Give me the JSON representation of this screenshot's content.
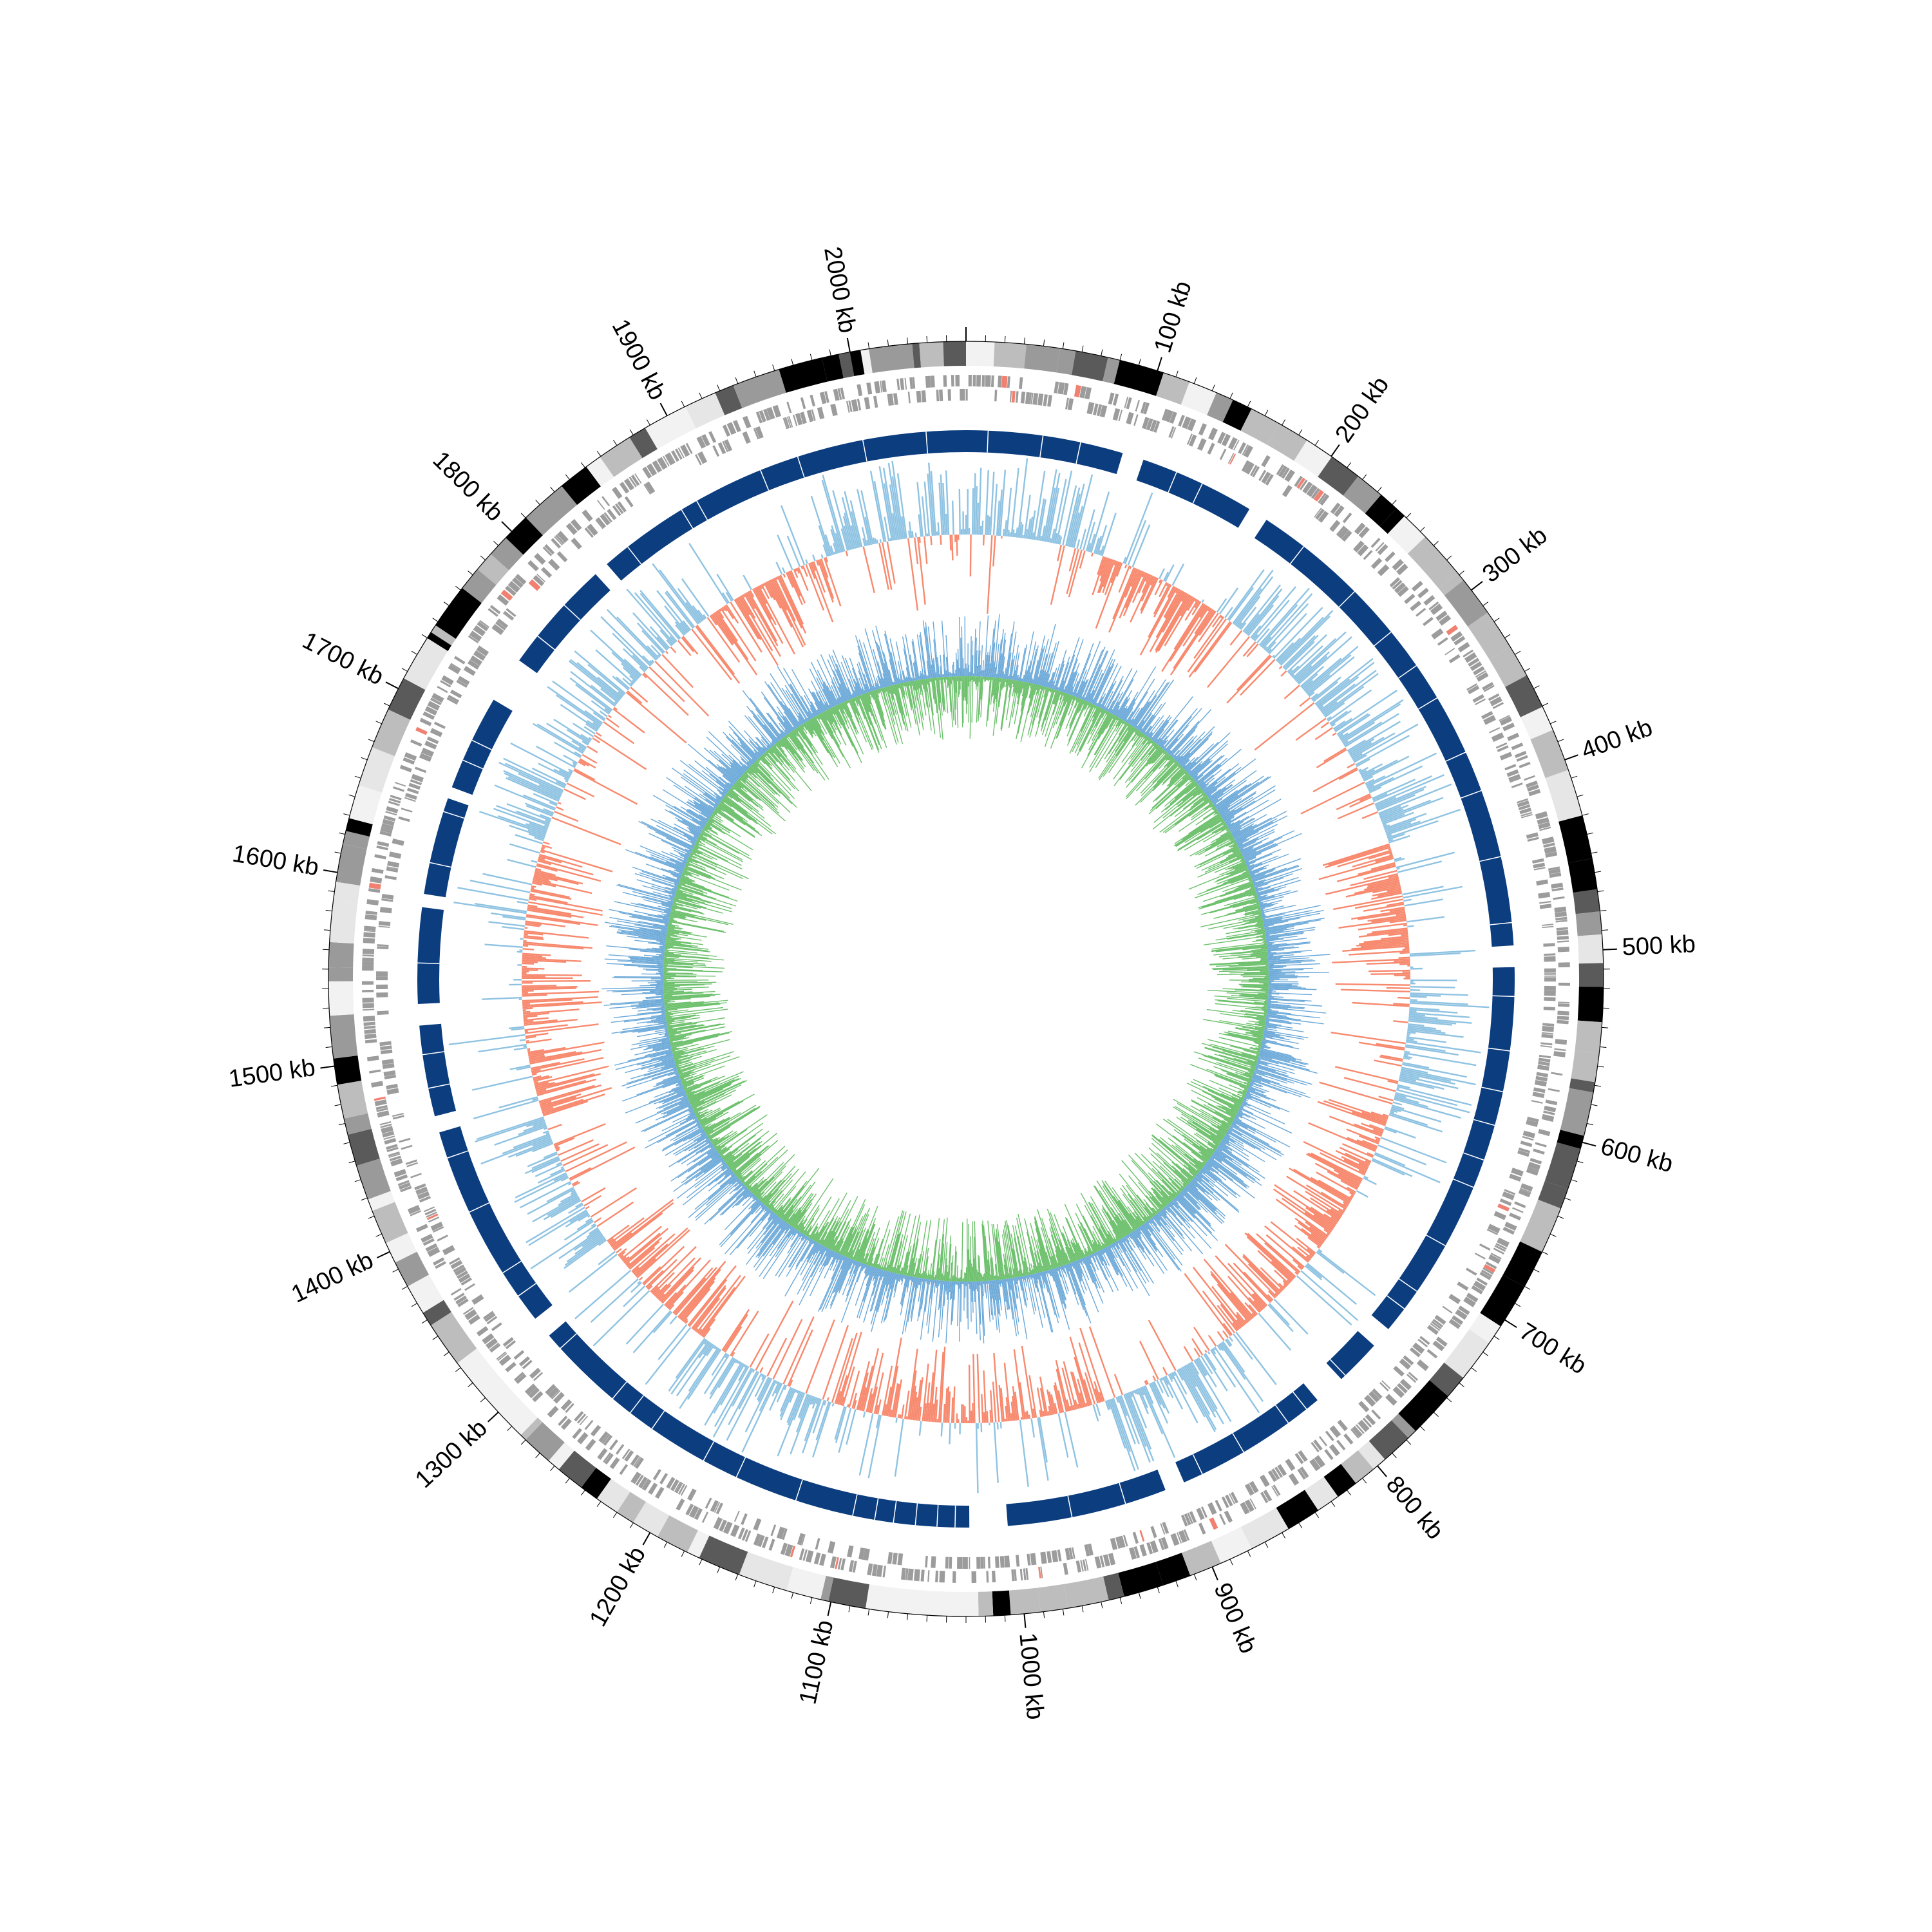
{
  "chart_data": {
    "type": "circular-genome",
    "title": "",
    "genome_length_kb": 2060,
    "direction": "clockwise",
    "start_position": "top",
    "tick_labels": [
      {
        "kb": 100,
        "label": "100 kb"
      },
      {
        "kb": 200,
        "label": "200 kb"
      },
      {
        "kb": 300,
        "label": "300 kb"
      },
      {
        "kb": 400,
        "label": "400 kb"
      },
      {
        "kb": 500,
        "label": "500 kb"
      },
      {
        "kb": 600,
        "label": "600 kb"
      },
      {
        "kb": 700,
        "label": "700 kb"
      },
      {
        "kb": 800,
        "label": "800 kb"
      },
      {
        "kb": 900,
        "label": "900 kb"
      },
      {
        "kb": 1000,
        "label": "1000 kb"
      },
      {
        "kb": 1100,
        "label": "1100 kb"
      },
      {
        "kb": 1200,
        "label": "1200 kb"
      },
      {
        "kb": 1300,
        "label": "1300 kb"
      },
      {
        "kb": 1400,
        "label": "1400 kb"
      },
      {
        "kb": 1500,
        "label": "1500 kb"
      },
      {
        "kb": 1600,
        "label": "1600 kb"
      },
      {
        "kb": 1700,
        "label": "1700 kb"
      },
      {
        "kb": 1800,
        "label": "1800 kb"
      },
      {
        "kb": 1900,
        "label": "1900 kb"
      },
      {
        "kb": 2000,
        "label": "2000 kb"
      }
    ],
    "minor_tick_interval_kb": 10,
    "tracks": [
      {
        "name": "",
        "kind": "contig-bands",
        "colors": [
          "#000000",
          "#5a5a5a",
          "#9a9a9a",
          "#bdbdbd",
          "#e6e6e6",
          "#f2f2f2"
        ]
      },
      {
        "name": "",
        "kind": "gene-features",
        "colors": {
          "forward": "#9c9c9c",
          "reverse": "#9c9c9c",
          "rna": "#f08070"
        }
      },
      {
        "name": "",
        "kind": "region-blocks",
        "color": "#0b3d7f",
        "highlight_color": "#1663b0",
        "gaps_kb": [
          [
            95,
            108
          ],
          [
            178,
            190
          ],
          [
            495,
            508
          ],
          [
            742,
            755
          ],
          [
            783,
            802
          ],
          [
            896,
            908
          ],
          [
            1005,
            1028
          ],
          [
            1313,
            1326
          ],
          [
            1452,
            1462
          ],
          [
            1517,
            1530
          ],
          [
            1588,
            1596
          ],
          [
            1655,
            1662
          ],
          [
            1720,
            1748
          ],
          [
            1817,
            1826
          ]
        ]
      },
      {
        "name": "",
        "kind": "gc-skew",
        "positive_color": "#8fc3e2",
        "negative_color": "#f7896e"
      },
      {
        "name": "",
        "kind": "gc-content",
        "colors": [
          "#6aa8d8",
          "#6cc06c"
        ]
      }
    ],
    "grid": false,
    "legend": "none"
  }
}
